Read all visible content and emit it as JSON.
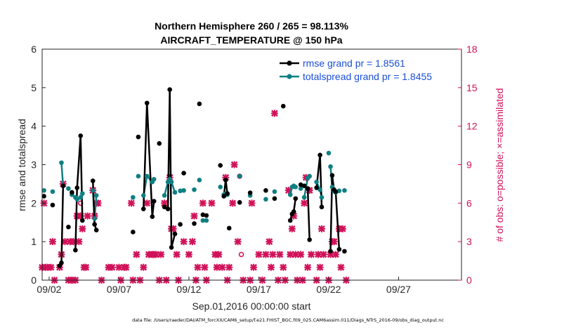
{
  "chart_data": {
    "type": "scatter",
    "title": "Northern Hemisphere 260 / 265 = 98.113%",
    "subtitle": "AIRCRAFT_TEMPERATURE @ 150 hPa",
    "xlabel": "Sep.01,2016 00:00:00 start",
    "ylabel": "rmse and totalspread",
    "y2label": "# of obs: o=possible; ×=assimilated",
    "xlim_days": [
      1.5,
      31.5
    ],
    "ylim": [
      0,
      6
    ],
    "y2lim": [
      0,
      18
    ],
    "x_ticks": [
      {
        "day": 2,
        "label": "09/02"
      },
      {
        "day": 7,
        "label": "09/07"
      },
      {
        "day": 12,
        "label": "09/12"
      },
      {
        "day": 17,
        "label": "09/17"
      },
      {
        "day": 22,
        "label": "09/22"
      },
      {
        "day": 27,
        "label": "09/27"
      }
    ],
    "y_ticks": [
      "0",
      "1",
      "2",
      "3",
      "4",
      "5",
      "6"
    ],
    "y2_ticks": [
      "0",
      "3",
      "6",
      "9",
      "12",
      "15",
      "18"
    ],
    "grid": false,
    "legend_position": "top-right",
    "series": [
      {
        "name": "rmse grand pr = 1.8561",
        "color": "#000000",
        "marker": "circle",
        "points": [
          [
            1.63,
            2.18,
            0
          ],
          [
            2.25,
            1.95,
            0
          ],
          [
            2.75,
            0.37,
            1
          ],
          [
            2.88,
            0.45,
            1
          ],
          [
            3.0,
            2.45,
            1
          ],
          [
            3.38,
            1.38,
            0
          ],
          [
            3.63,
            2.28,
            0
          ],
          [
            3.88,
            0.78,
            1
          ],
          [
            4.0,
            2.4,
            1
          ],
          [
            4.25,
            3.75,
            1
          ],
          [
            4.38,
            1.55,
            1
          ],
          [
            5.13,
            2.58,
            1
          ],
          [
            5.25,
            1.45,
            1
          ],
          [
            5.38,
            1.3,
            1
          ],
          [
            8.0,
            1.25,
            0
          ],
          [
            8.38,
            3.72,
            0
          ],
          [
            8.75,
            1.85,
            1
          ],
          [
            9.0,
            4.6,
            1
          ],
          [
            9.38,
            1.65,
            1
          ],
          [
            9.5,
            2.05,
            1
          ],
          [
            9.88,
            3.55,
            0
          ],
          [
            10.25,
            1.9,
            1
          ],
          [
            10.5,
            1.85,
            1
          ],
          [
            10.63,
            4.95,
            1
          ],
          [
            10.75,
            0.85,
            1
          ],
          [
            11.0,
            1.2,
            1
          ],
          [
            11.38,
            1.45,
            0
          ],
          [
            11.63,
            2.78,
            0
          ],
          [
            12.38,
            1.47,
            0
          ],
          [
            12.75,
            4.58,
            0
          ],
          [
            13.0,
            1.7,
            1
          ],
          [
            13.25,
            1.68,
            1
          ],
          [
            14.25,
            2.98,
            0
          ],
          [
            14.5,
            2.18,
            1
          ],
          [
            14.63,
            2.6,
            1
          ],
          [
            14.75,
            2.25,
            1
          ],
          [
            14.88,
            1.35,
            0
          ],
          [
            15.63,
            2.02,
            0
          ],
          [
            16.38,
            2.27,
            0
          ],
          [
            17.5,
            2.33,
            0
          ],
          [
            18.13,
            2.12,
            0
          ],
          [
            18.75,
            4.52,
            0
          ],
          [
            19.25,
            1.55,
            1
          ],
          [
            19.38,
            1.72,
            1
          ],
          [
            19.5,
            1.78,
            1
          ],
          [
            19.63,
            2.12,
            1
          ],
          [
            20.0,
            2.48,
            0
          ],
          [
            20.25,
            2.45,
            1
          ],
          [
            20.5,
            2.38,
            1
          ],
          [
            20.63,
            1.05,
            1
          ],
          [
            21.13,
            2.4,
            1
          ],
          [
            21.38,
            3.25,
            1
          ],
          [
            21.5,
            1.9,
            1
          ],
          [
            22.13,
            0.75,
            1
          ],
          [
            22.25,
            2.72,
            1
          ],
          [
            22.38,
            2.35,
            1
          ],
          [
            22.5,
            2.3,
            1
          ],
          [
            22.75,
            0.8,
            1
          ],
          [
            23.13,
            0.75,
            0
          ]
        ]
      },
      {
        "name": "totalspread grand pr = 1.8455",
        "color": "#0f7f82",
        "marker": "circle",
        "points": [
          [
            1.63,
            2.33,
            0
          ],
          [
            2.25,
            2.3,
            0
          ],
          [
            2.88,
            3.05,
            1
          ],
          [
            3.0,
            2.45,
            1
          ],
          [
            3.38,
            2.38,
            0
          ],
          [
            3.63,
            2.22,
            0
          ],
          [
            3.88,
            2.15,
            1
          ],
          [
            4.0,
            2.1,
            1
          ],
          [
            4.25,
            2.15,
            1
          ],
          [
            4.38,
            2.25,
            1
          ],
          [
            5.13,
            2.33,
            1
          ],
          [
            5.25,
            1.6,
            1
          ],
          [
            5.38,
            2.2,
            1
          ],
          [
            8.0,
            2.15,
            0
          ],
          [
            8.38,
            2.7,
            0
          ],
          [
            8.75,
            2.2,
            1
          ],
          [
            9.0,
            2.7,
            1
          ],
          [
            9.38,
            2.55,
            1
          ],
          [
            9.5,
            2.62,
            1
          ],
          [
            10.25,
            2.2,
            1
          ],
          [
            10.5,
            2.55,
            1
          ],
          [
            10.63,
            2.62,
            1
          ],
          [
            10.75,
            2.55,
            1
          ],
          [
            11.0,
            2.28,
            1
          ],
          [
            11.38,
            2.32,
            0
          ],
          [
            11.63,
            2.33,
            0
          ],
          [
            12.38,
            2.35,
            0
          ],
          [
            12.75,
            2.6,
            0
          ],
          [
            13.0,
            1.55,
            1
          ],
          [
            13.25,
            1.55,
            1
          ],
          [
            14.25,
            2.42,
            0
          ],
          [
            14.5,
            2.22,
            1
          ],
          [
            14.63,
            2.25,
            1
          ],
          [
            14.75,
            2.22,
            1
          ],
          [
            15.63,
            2.7,
            0
          ],
          [
            16.38,
            2.2,
            0
          ],
          [
            17.5,
            2.1,
            0
          ],
          [
            18.13,
            2.3,
            0
          ],
          [
            19.25,
            2.22,
            1
          ],
          [
            19.38,
            2.42,
            1
          ],
          [
            19.5,
            2.45,
            1
          ],
          [
            19.63,
            2.42,
            1
          ],
          [
            20.0,
            2.38,
            0
          ],
          [
            20.25,
            2.15,
            1
          ],
          [
            20.5,
            2.65,
            1
          ],
          [
            20.63,
            2.7,
            1
          ],
          [
            21.13,
            2.55,
            1
          ],
          [
            21.38,
            2.35,
            1
          ],
          [
            21.5,
            2.15,
            1
          ],
          [
            22.0,
            3.3,
            0
          ],
          [
            22.13,
            2.95,
            1
          ],
          [
            22.25,
            2.42,
            1
          ],
          [
            22.38,
            2.32,
            1
          ],
          [
            22.5,
            2.28,
            1
          ],
          [
            22.75,
            2.32,
            1
          ],
          [
            23.13,
            2.33,
            0
          ]
        ]
      },
      {
        "name": "# of obs possible",
        "color": "#d0125a",
        "marker": "o",
        "points": [
          [
            4.25,
            6.0
          ],
          [
            15.63,
            8.1
          ],
          [
            15.75,
            2.0
          ]
        ]
      },
      {
        "name": "# of obs assimilated",
        "color": "#d0125a",
        "marker": "x",
        "points": [
          [
            1.5,
            1
          ],
          [
            1.63,
            6
          ],
          [
            1.75,
            1
          ],
          [
            1.88,
            1
          ],
          [
            2.13,
            1
          ],
          [
            2.25,
            3
          ],
          [
            2.38,
            0
          ],
          [
            2.75,
            1
          ],
          [
            2.88,
            2
          ],
          [
            3.0,
            7.5
          ],
          [
            3.13,
            3
          ],
          [
            3.38,
            0
          ],
          [
            3.5,
            3
          ],
          [
            3.63,
            0
          ],
          [
            3.75,
            3
          ],
          [
            3.88,
            0
          ],
          [
            4.0,
            5
          ],
          [
            4.13,
            3
          ],
          [
            4.25,
            5
          ],
          [
            4.38,
            4
          ],
          [
            4.5,
            1
          ],
          [
            4.63,
            1
          ],
          [
            4.75,
            5
          ],
          [
            5.13,
            7
          ],
          [
            5.25,
            5
          ],
          [
            5.38,
            6
          ],
          [
            5.5,
            6
          ],
          [
            5.75,
            0
          ],
          [
            6.25,
            1
          ],
          [
            6.5,
            1
          ],
          [
            7.0,
            1
          ],
          [
            7.13,
            0
          ],
          [
            7.38,
            1
          ],
          [
            7.5,
            1
          ],
          [
            7.88,
            6
          ],
          [
            8.0,
            0
          ],
          [
            8.25,
            2
          ],
          [
            8.5,
            0
          ],
          [
            8.75,
            1
          ],
          [
            9.0,
            6
          ],
          [
            9.13,
            2
          ],
          [
            9.38,
            2
          ],
          [
            9.5,
            2
          ],
          [
            9.63,
            2
          ],
          [
            9.88,
            0
          ],
          [
            10.0,
            2
          ],
          [
            10.25,
            6
          ],
          [
            10.38,
            0
          ],
          [
            10.63,
            8
          ],
          [
            10.75,
            4
          ],
          [
            10.88,
            4
          ],
          [
            11.13,
            2
          ],
          [
            11.25,
            0
          ],
          [
            11.63,
            3
          ],
          [
            12.0,
            2
          ],
          [
            12.25,
            3
          ],
          [
            12.38,
            5
          ],
          [
            12.5,
            0
          ],
          [
            12.63,
            1
          ],
          [
            13.0,
            6
          ],
          [
            13.13,
            1
          ],
          [
            13.25,
            0
          ],
          [
            13.63,
            6
          ],
          [
            13.88,
            2
          ],
          [
            14.0,
            1
          ],
          [
            14.13,
            2
          ],
          [
            14.38,
            1
          ],
          [
            14.63,
            8
          ],
          [
            14.75,
            0
          ],
          [
            14.88,
            1
          ],
          [
            15.13,
            6
          ],
          [
            15.25,
            9
          ],
          [
            15.5,
            3
          ],
          [
            15.88,
            0
          ],
          [
            16.38,
            0
          ],
          [
            16.5,
            6
          ],
          [
            16.63,
            1
          ],
          [
            17.0,
            2
          ],
          [
            17.25,
            0
          ],
          [
            17.5,
            2
          ],
          [
            17.75,
            3
          ],
          [
            17.88,
            1
          ],
          [
            18.0,
            2
          ],
          [
            18.13,
            13
          ],
          [
            18.38,
            0
          ],
          [
            18.5,
            2
          ],
          [
            18.75,
            1
          ],
          [
            18.88,
            0
          ],
          [
            19.13,
            7
          ],
          [
            19.25,
            2
          ],
          [
            19.38,
            4
          ],
          [
            19.5,
            5
          ],
          [
            19.63,
            2
          ],
          [
            19.75,
            0
          ],
          [
            20.0,
            2
          ],
          [
            20.13,
            0
          ],
          [
            20.25,
            6
          ],
          [
            20.38,
            8
          ],
          [
            20.5,
            1
          ],
          [
            20.63,
            7
          ],
          [
            20.75,
            2
          ],
          [
            21.13,
            0
          ],
          [
            21.25,
            2
          ],
          [
            21.38,
            1
          ],
          [
            21.5,
            4
          ],
          [
            21.63,
            2
          ],
          [
            22.0,
            0
          ],
          [
            22.13,
            2
          ],
          [
            22.25,
            3
          ],
          [
            22.38,
            3
          ],
          [
            22.5,
            2
          ],
          [
            22.75,
            4
          ],
          [
            22.88,
            1
          ],
          [
            23.0,
            4
          ],
          [
            23.25,
            0
          ]
        ]
      }
    ],
    "footer": "data file: /Users/raeder/DAI/ATM_forcXX/CAM6_setup/f.e21.FHIST_BGC.f09_025.CAM6assim.011/Diags_NTrS_2016-09/obs_diag_output.nc"
  }
}
